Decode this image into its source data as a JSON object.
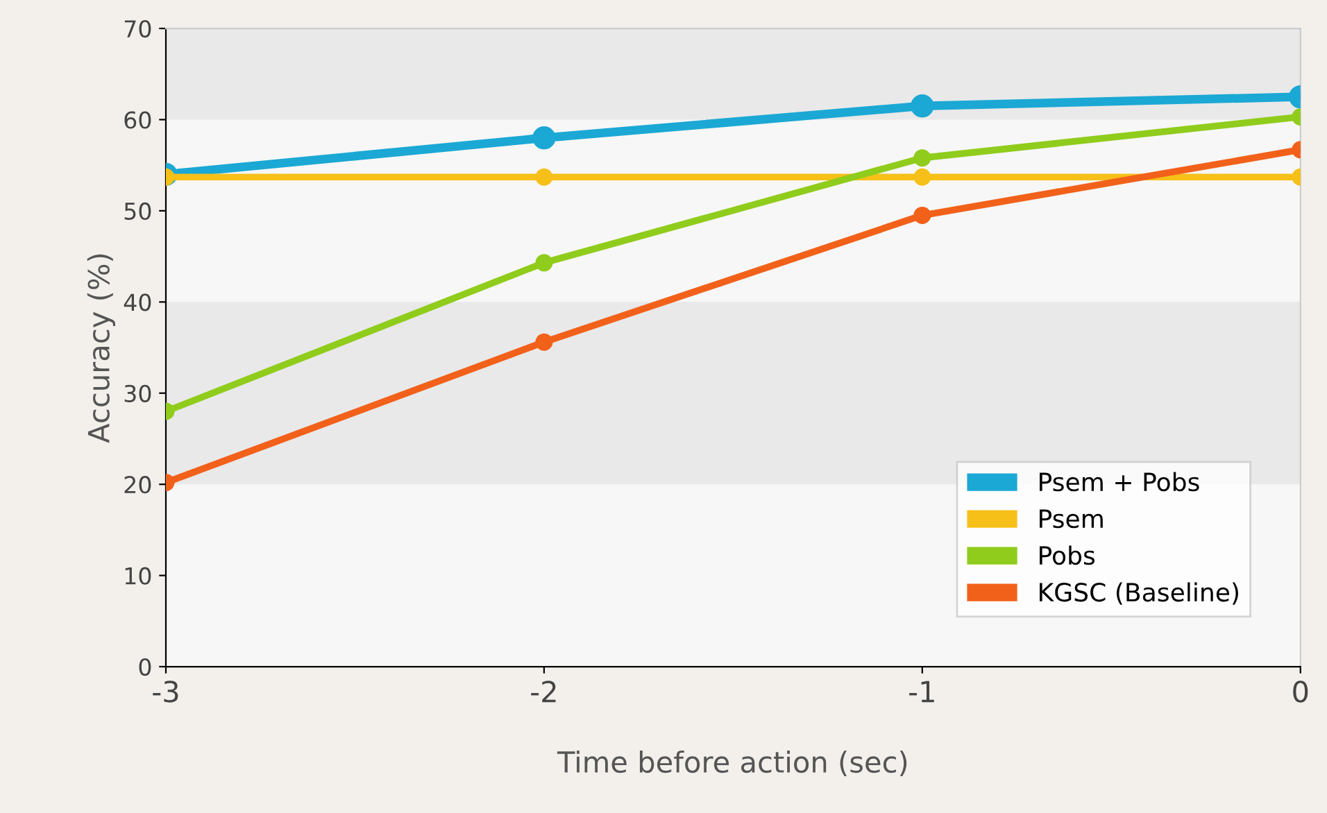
{
  "chart_data": {
    "type": "line",
    "xlabel": "Time before action (sec)",
    "ylabel": "Accuracy (%)",
    "x": [
      -3,
      -2,
      -1,
      0
    ],
    "series": [
      {
        "name": "Psem + Pobs",
        "color": "#1ba8d4",
        "values": [
          54.0,
          58.0,
          61.5,
          62.5
        ]
      },
      {
        "name": "Psem",
        "color": "#f6c019",
        "values": [
          53.7,
          53.7,
          53.7,
          53.7
        ]
      },
      {
        "name": "Pobs",
        "color": "#90cc1c",
        "values": [
          28.0,
          44.3,
          55.8,
          60.3
        ]
      },
      {
        "name": "KGSC (Baseline)",
        "color": "#f2611a",
        "values": [
          20.2,
          35.6,
          49.5,
          56.7
        ]
      }
    ],
    "xlim": [
      -3,
      0
    ],
    "xticks": [
      -3,
      -2,
      -1,
      0
    ],
    "ylim": [
      0,
      70
    ],
    "yticks": [
      0,
      10,
      20,
      30,
      40,
      50,
      60,
      70
    ],
    "bands": [
      {
        "axis": "y",
        "from": 60,
        "to": 70,
        "color": "#e9e9e9"
      },
      {
        "axis": "y",
        "from": 20,
        "to": 40,
        "color": "#e9e9e9"
      }
    ],
    "marker": "circle",
    "legend": "bottom right",
    "grid": false
  }
}
